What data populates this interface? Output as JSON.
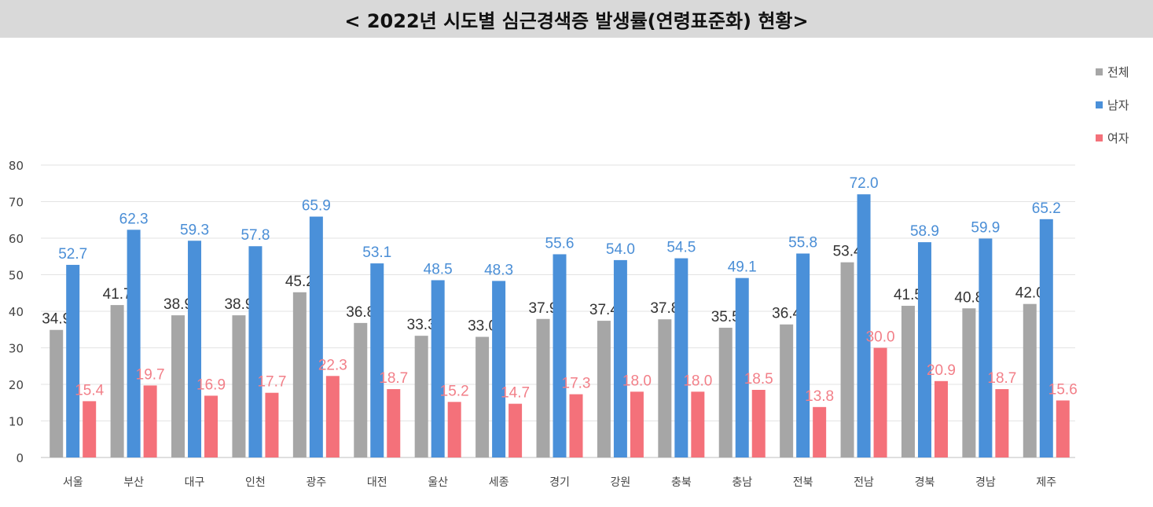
{
  "title": "< 2022년 시도별 심근경색증 발생률(연령표준화) 현황>",
  "chart_data": {
    "type": "bar",
    "categories": [
      "서울",
      "부산",
      "대구",
      "인천",
      "광주",
      "대전",
      "울산",
      "세종",
      "경기",
      "강원",
      "충북",
      "충남",
      "전북",
      "전남",
      "경북",
      "경남",
      "제주"
    ],
    "series": [
      {
        "name": "전체",
        "color": "#a6a6a6",
        "label_color": "#333333",
        "values": [
          34.9,
          41.7,
          38.9,
          38.9,
          45.2,
          36.8,
          33.3,
          33.0,
          37.9,
          37.4,
          37.8,
          35.5,
          36.4,
          53.4,
          41.5,
          40.8,
          42.0
        ]
      },
      {
        "name": "남자",
        "color": "#4a90d9",
        "label_color": "#4a8ed6",
        "values": [
          52.7,
          62.3,
          59.3,
          57.8,
          65.9,
          53.1,
          48.5,
          48.3,
          55.6,
          54.0,
          54.5,
          49.1,
          55.8,
          72.0,
          58.9,
          59.9,
          65.2
        ]
      },
      {
        "name": "여자",
        "color": "#f4717a",
        "label_color": "#f27f88",
        "values": [
          15.4,
          19.7,
          16.9,
          17.7,
          22.3,
          18.7,
          15.2,
          14.7,
          17.3,
          18.0,
          18.0,
          18.5,
          13.8,
          30.0,
          20.9,
          18.7,
          15.6
        ]
      }
    ],
    "yticks": [
      "0",
      "10",
      "20",
      "30",
      "40",
      "50",
      "60",
      "70",
      "80"
    ],
    "ylim": [
      0,
      80
    ],
    "grid": true,
    "legend": "top-right"
  }
}
